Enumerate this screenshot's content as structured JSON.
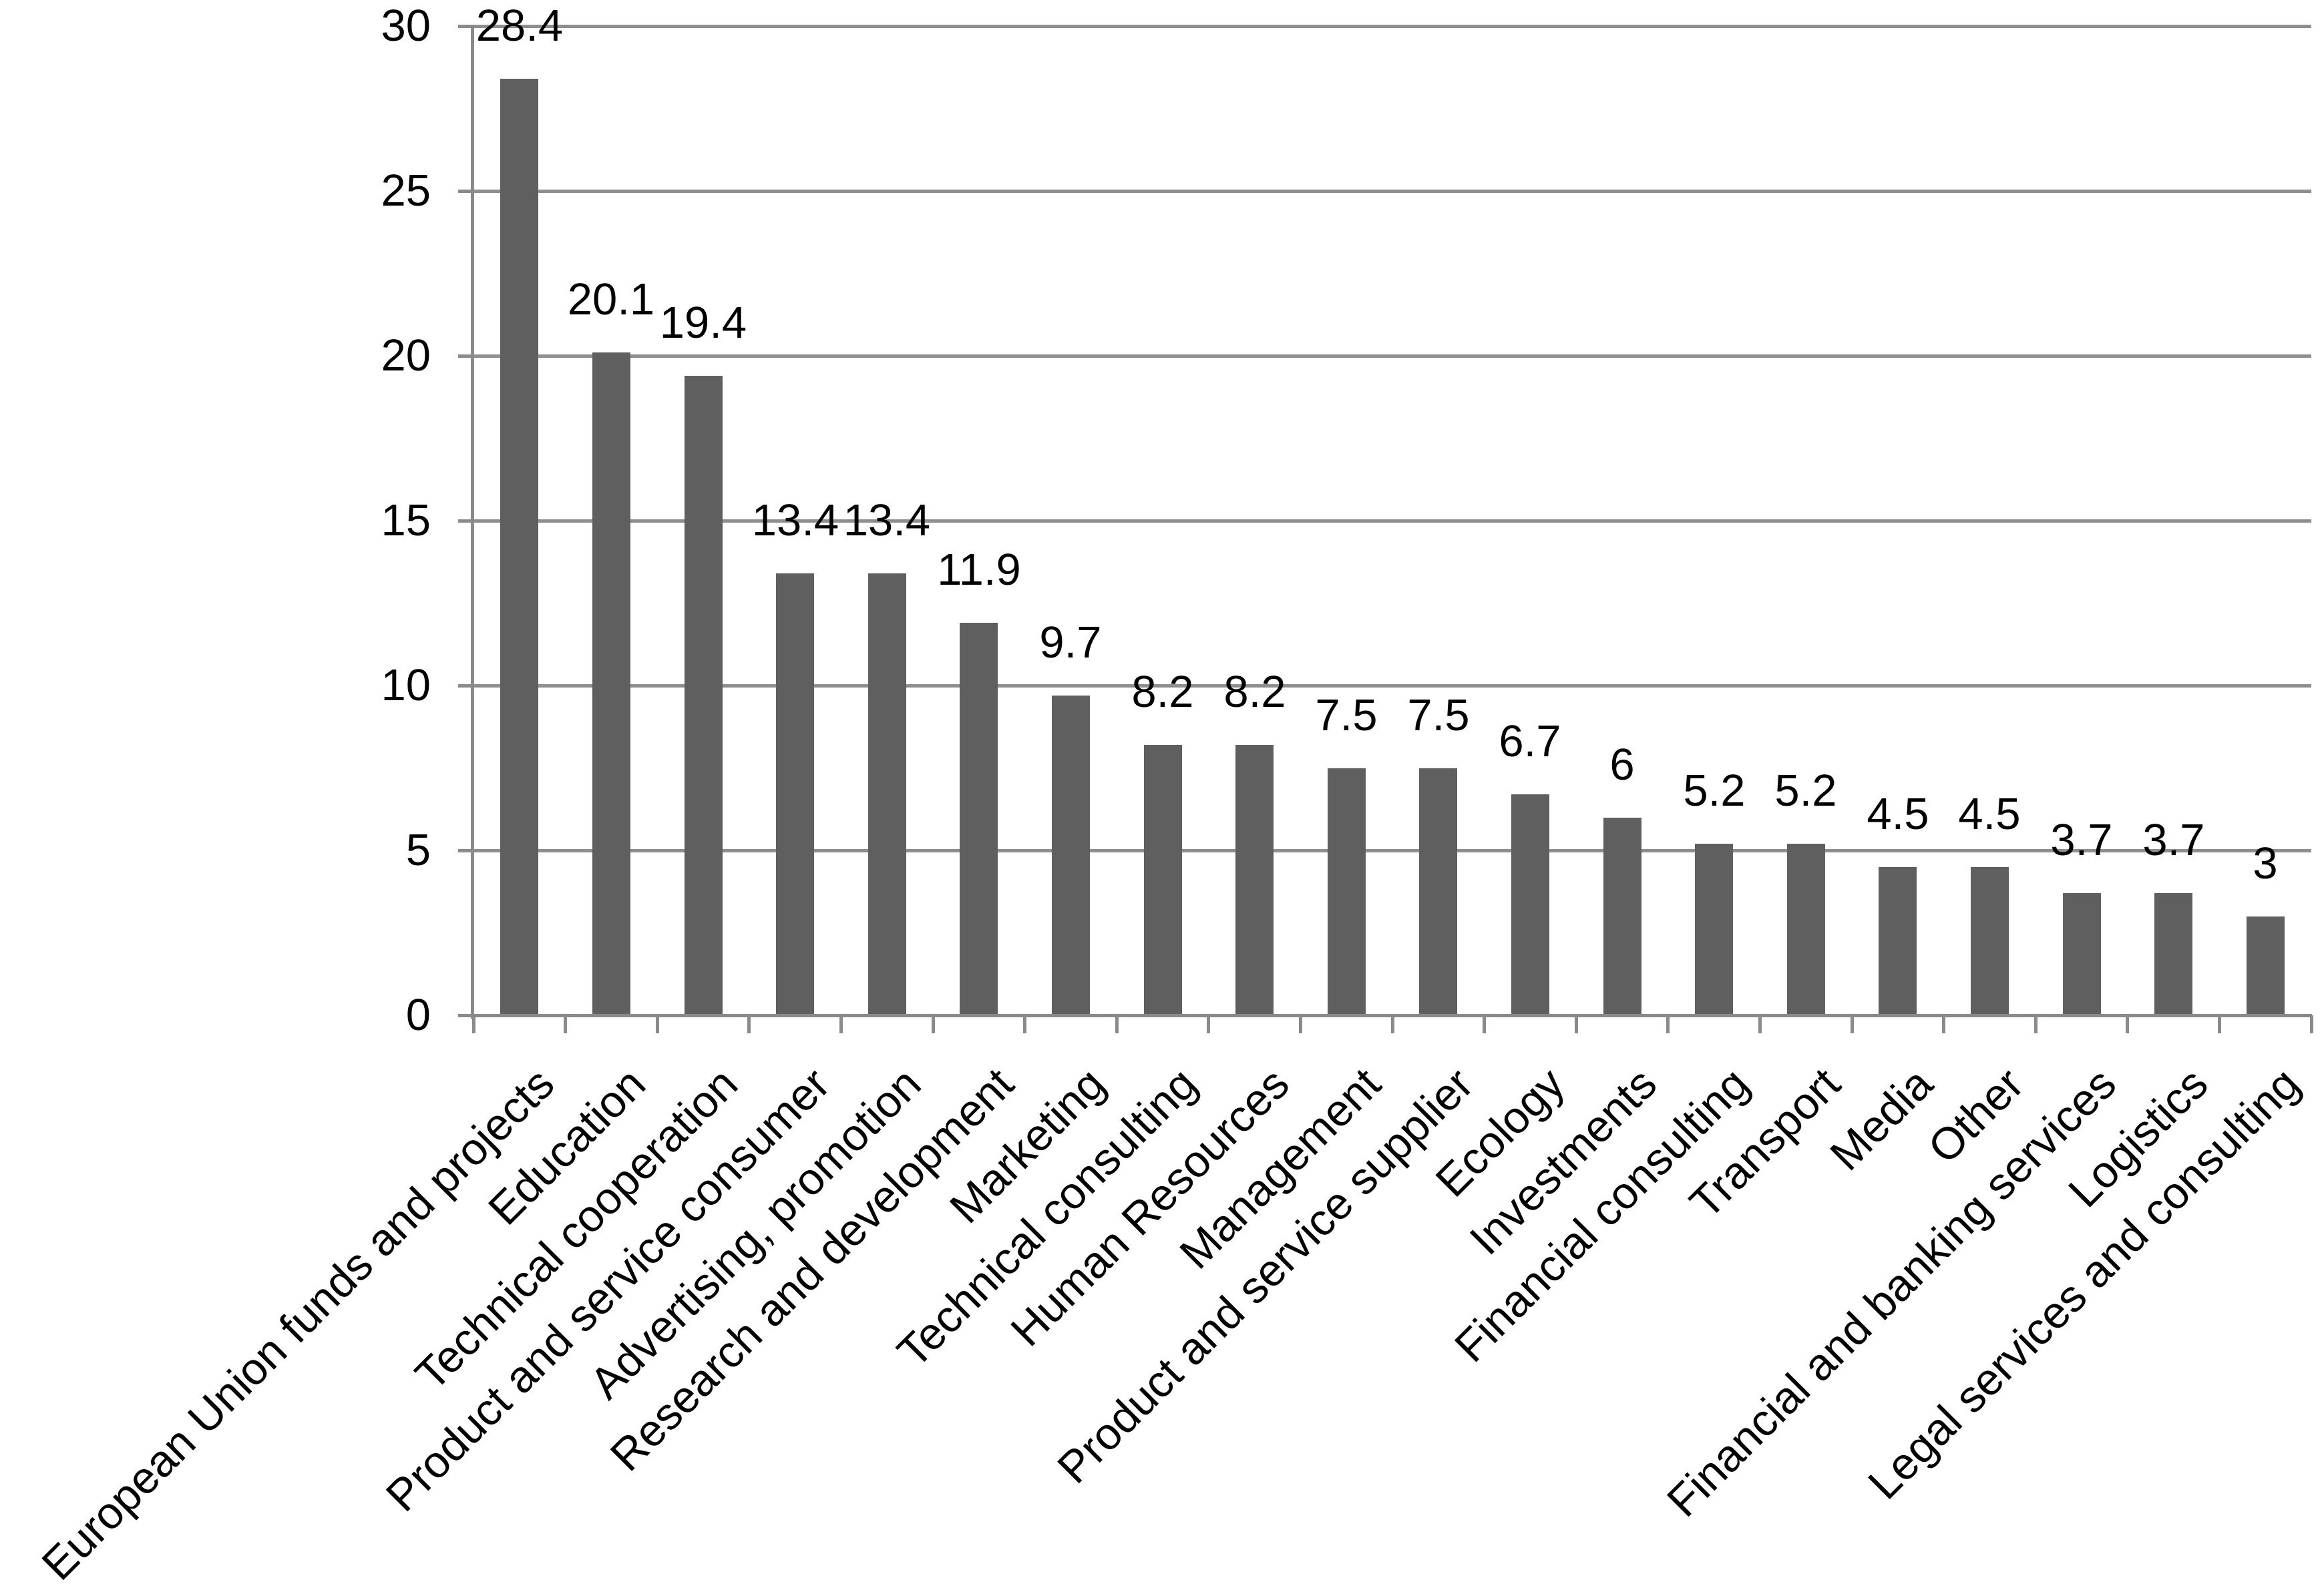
{
  "chart_data": {
    "type": "bar",
    "title": "",
    "xlabel": "",
    "ylabel": "",
    "categories": [
      "European Union funds and projects",
      "Education",
      "Technical cooperation",
      "Product and service consumer",
      "Advertising, promotion",
      "Research and development",
      "Marketing",
      "Technical consulting",
      "Human Resources",
      "Management",
      "Product and service supplier",
      "Ecology",
      "Investments",
      "Financial consulting",
      "Transport",
      "Media",
      "Other",
      "Financial and banking services",
      "Logistics",
      "Legal services and consulting"
    ],
    "values": [
      28.4,
      20.1,
      19.4,
      13.4,
      13.4,
      11.9,
      9.7,
      8.2,
      8.2,
      7.5,
      7.5,
      6.7,
      6,
      5.2,
      5.2,
      4.5,
      4.5,
      3.7,
      3.7,
      3
    ],
    "value_labels": [
      "28.4",
      "20.1",
      "19.4",
      "13.4",
      "13.4",
      "11.9",
      "9.7",
      "8.2",
      "8.2",
      "7.5",
      "7.5",
      "6.7",
      "6",
      "5.2",
      "5.2",
      "4.5",
      "4.5",
      "3.7",
      "3.7",
      "3"
    ],
    "ylim": [
      0,
      30
    ],
    "yticks": [
      0,
      5,
      10,
      15,
      20,
      25,
      30
    ],
    "ytick_labels": [
      "0",
      "5",
      "10",
      "15",
      "20",
      "25",
      "30"
    ],
    "grid": "horizontal",
    "legend_position": "none",
    "x_label_rotation_deg": 45,
    "bar_color": "#5F5F5F",
    "grid_color": "#8E8E8E",
    "axis_color": "#8A8A8A",
    "text_color": "#000000",
    "background_color": "#FFFFFF"
  }
}
